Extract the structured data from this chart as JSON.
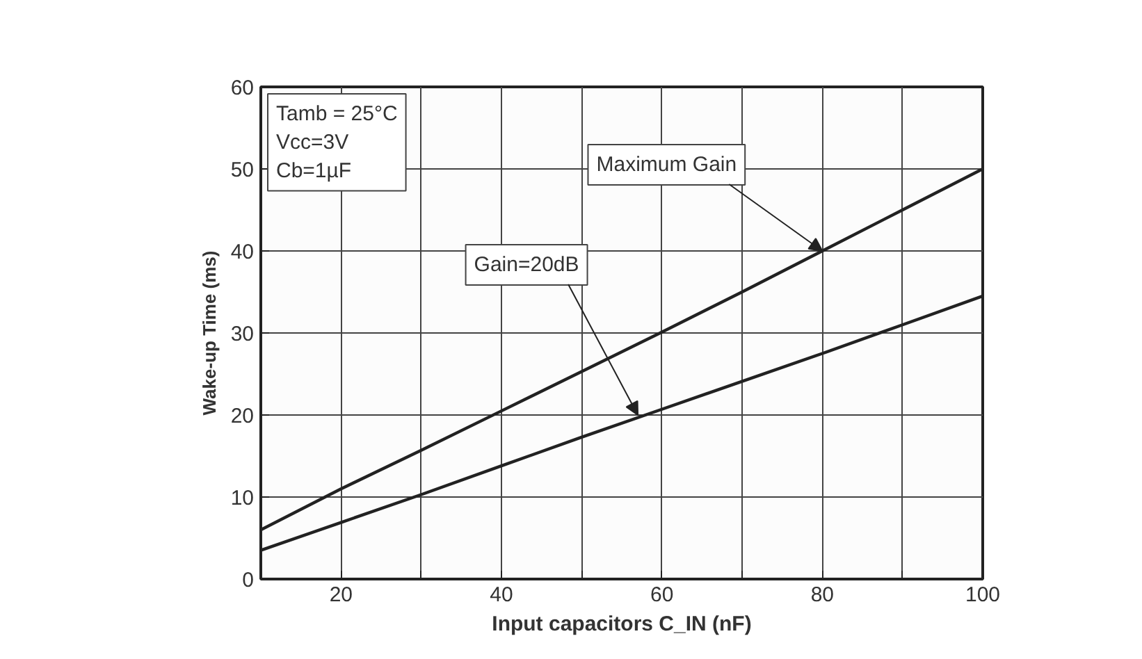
{
  "chart_data": {
    "type": "line",
    "xlabel": "Input capacitors C_IN (nF)",
    "ylabel": "Wake-up Time (ms)",
    "x": [
      10,
      20,
      30,
      40,
      50,
      60,
      70,
      80,
      90,
      100
    ],
    "series": [
      {
        "color": "#222222",
        "values": [
          6,
          11,
          15.7,
          20.5,
          25.3,
          30.1,
          35,
          40,
          45,
          50
        ]
      },
      {
        "color": "#222222",
        "values": [
          3.5,
          6.9,
          10.3,
          13.8,
          17.3,
          20.7,
          24.1,
          27.5,
          31,
          34.5
        ]
      }
    ],
    "xlim": [
      10,
      100
    ],
    "ylim": [
      0,
      60
    ],
    "xticks": [
      {
        "value": 10,
        "label": null
      },
      20,
      {
        "value": 30,
        "label": null
      },
      40,
      {
        "value": 50,
        "label": null
      },
      60,
      {
        "value": 70,
        "label": null
      },
      80,
      {
        "value": 90,
        "label": null
      },
      100
    ],
    "yticks": [
      0,
      10,
      20,
      30,
      40,
      50,
      60
    ],
    "grid": true,
    "marker": "none",
    "line_style": "solid",
    "annotations": [
      "Tamb = 25°C\nVcc=3V\nCb=1µF",
      {
        "text": "Maximum Gain",
        "x": 80,
        "y": 40
      },
      {
        "text": "Gain=20dB",
        "x": 57,
        "y": 20
      }
    ]
  }
}
